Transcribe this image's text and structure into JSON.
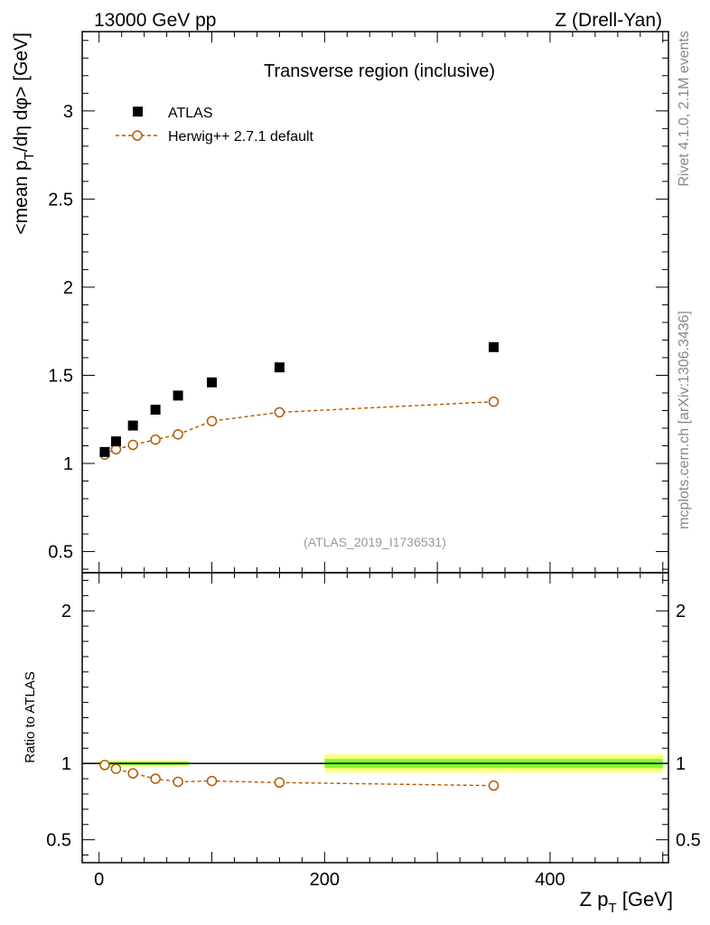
{
  "header": {
    "energy_label": "13000 GeV pp",
    "process_label": "Z (Drell-Yan)"
  },
  "side_labels": {
    "rivet": "Rivet 4.1.0,  2.1M events",
    "mcplots": "mcplots.cern.ch [arXiv:1306.3436]"
  },
  "colors": {
    "data_marker": "#000000",
    "mc_line": "#b35900",
    "band_inner": "#7fff32",
    "band_outer": "#ffff7f"
  },
  "chart_data": [
    {
      "type": "scatter",
      "panel": "main",
      "title": "Transverse region (inclusive)",
      "analysis_label": "(ATLAS_2019_I1736531)",
      "ylabel": "<mean p_T/dη dφ> [GeV]",
      "ylabel_main": "<mean p",
      "ylabel_sub": "T",
      "ylabel_rest": "/dη dφ> [GeV]",
      "xlim": [
        -15,
        505
      ],
      "ylim": [
        0.38,
        3.45
      ],
      "yticks": [
        0.5,
        1,
        1.5,
        2,
        2.5,
        3
      ],
      "ytick_labels": [
        "0.5",
        "1",
        "1.5",
        "2",
        "2.5",
        "3"
      ],
      "legend_position": "top-left",
      "series": [
        {
          "name": "ATLAS",
          "marker": "square",
          "x": [
            5,
            15,
            30,
            50,
            70,
            100,
            160,
            350
          ],
          "y": [
            1.065,
            1.125,
            1.215,
            1.305,
            1.385,
            1.46,
            1.545,
            1.66
          ]
        },
        {
          "name": "Herwig++ 2.7.1 default",
          "marker": "open-circle",
          "line": "dashed",
          "x": [
            5,
            15,
            30,
            50,
            70,
            100,
            160,
            350
          ],
          "y": [
            1.05,
            1.08,
            1.105,
            1.135,
            1.165,
            1.24,
            1.29,
            1.35
          ]
        }
      ]
    },
    {
      "type": "scatter",
      "panel": "ratio",
      "ylabel": "Ratio to ATLAS",
      "xlabel": "Z p_T [GeV]",
      "xlabel_main": "Z p",
      "xlabel_sub": "T",
      "xlabel_rest": " [GeV]",
      "xlim": [
        -15,
        505
      ],
      "ylim": [
        0.35,
        2.25
      ],
      "xticks": [
        0,
        200,
        400
      ],
      "xtick_labels": [
        "0",
        "200",
        "400"
      ],
      "yticks": [
        0.5,
        1,
        2
      ],
      "ytick_labels": [
        "0.5",
        "1",
        "2"
      ],
      "reference_line": 1,
      "uncertainty_bands": [
        {
          "x_from": 0,
          "x_to": 80,
          "inner": 0.01,
          "outer": 0.02
        },
        {
          "x_from": 200,
          "x_to": 500,
          "inner": 0.03,
          "outer": 0.06
        }
      ],
      "series": [
        {
          "name": "Herwig++ 2.7.1 default",
          "marker": "open-circle",
          "line": "dashed",
          "x": [
            5,
            15,
            30,
            50,
            70,
            100,
            160,
            350
          ],
          "y": [
            0.99,
            0.965,
            0.935,
            0.9,
            0.88,
            0.885,
            0.875,
            0.855
          ]
        }
      ]
    }
  ]
}
